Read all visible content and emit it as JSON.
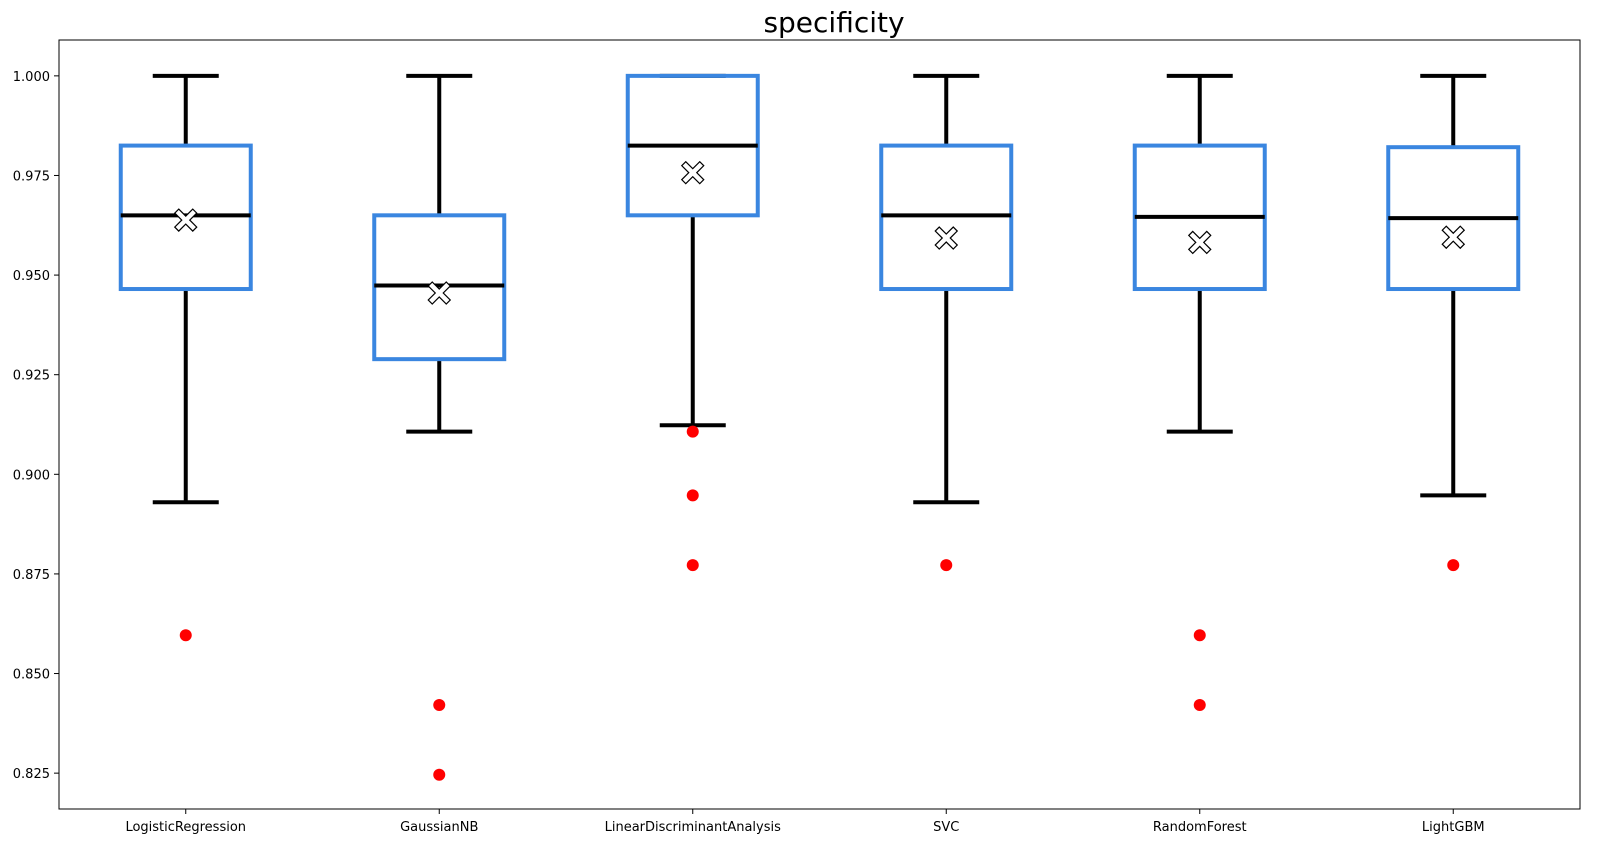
{
  "chart_data": {
    "type": "boxplot",
    "title": "specificity",
    "xlabel": "",
    "ylabel": "",
    "ylim": [
      0.816,
      1.009
    ],
    "yticks": [
      0.825,
      0.85,
      0.875,
      0.9,
      0.925,
      0.95,
      0.975,
      1.0
    ],
    "ytick_labels": [
      "0.825",
      "0.850",
      "0.875",
      "0.900",
      "0.925",
      "0.950",
      "0.975",
      "1.000"
    ],
    "grid": false,
    "box_color": "#3a86e0",
    "whisker_color": "#000000",
    "median_color": "#000000",
    "outlier_color": "#ff0000",
    "mean_marker": "white-x-marker",
    "boxes": [
      {
        "name": "LogisticRegression",
        "whisker_low": 0.893,
        "q1": 0.9465,
        "median": 0.965,
        "q3": 0.9825,
        "whisker_high": 1.0,
        "mean": 0.9638,
        "outliers": [
          0.8596
        ]
      },
      {
        "name": "GaussianNB",
        "whisker_low": 0.9107,
        "q1": 0.9289,
        "median": 0.9474,
        "q3": 0.965,
        "whisker_high": 1.0,
        "mean": 0.9455,
        "outliers": [
          0.8421,
          0.8246
        ]
      },
      {
        "name": "LinearDiscriminantAnalysis",
        "whisker_low": 0.9123,
        "q1": 0.965,
        "median": 0.9825,
        "q3": 1.0,
        "whisker_high": 1.0,
        "mean": 0.9757,
        "outliers": [
          0.9107,
          0.8947,
          0.8772
        ]
      },
      {
        "name": "SVC",
        "whisker_low": 0.893,
        "q1": 0.9465,
        "median": 0.965,
        "q3": 0.9825,
        "whisker_high": 1.0,
        "mean": 0.9593,
        "outliers": [
          0.8772
        ]
      },
      {
        "name": "RandomForest",
        "whisker_low": 0.9107,
        "q1": 0.9465,
        "median": 0.9646,
        "q3": 0.9825,
        "whisker_high": 1.0,
        "mean": 0.9582,
        "outliers": [
          0.8596,
          0.8421
        ]
      },
      {
        "name": "LightGBM",
        "whisker_low": 0.8947,
        "q1": 0.9465,
        "median": 0.9643,
        "q3": 0.9821,
        "whisker_high": 1.0,
        "mean": 0.9595,
        "outliers": [
          0.8772
        ]
      }
    ]
  }
}
